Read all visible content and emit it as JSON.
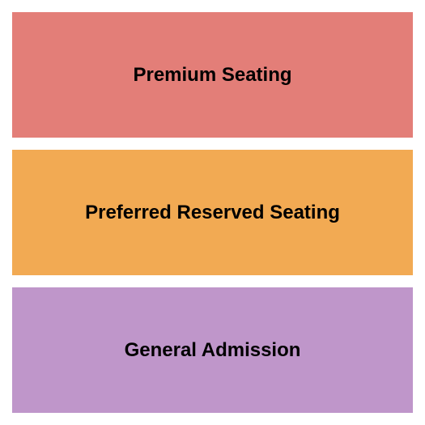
{
  "seating_chart": {
    "type": "infographic",
    "background_color": "#ffffff",
    "gap": 15,
    "padding": 15,
    "sections": [
      {
        "label": "Premium Seating",
        "background_color": "#e37e78",
        "text_color": "#000000",
        "font_size": 24,
        "font_weight": "bold"
      },
      {
        "label": "Preferred Reserved Seating",
        "background_color": "#f2aa53",
        "text_color": "#000000",
        "font_size": 24,
        "font_weight": "bold"
      },
      {
        "label": "General Admission",
        "background_color": "#bf96ca",
        "text_color": "#000000",
        "font_size": 24,
        "font_weight": "bold"
      }
    ]
  }
}
